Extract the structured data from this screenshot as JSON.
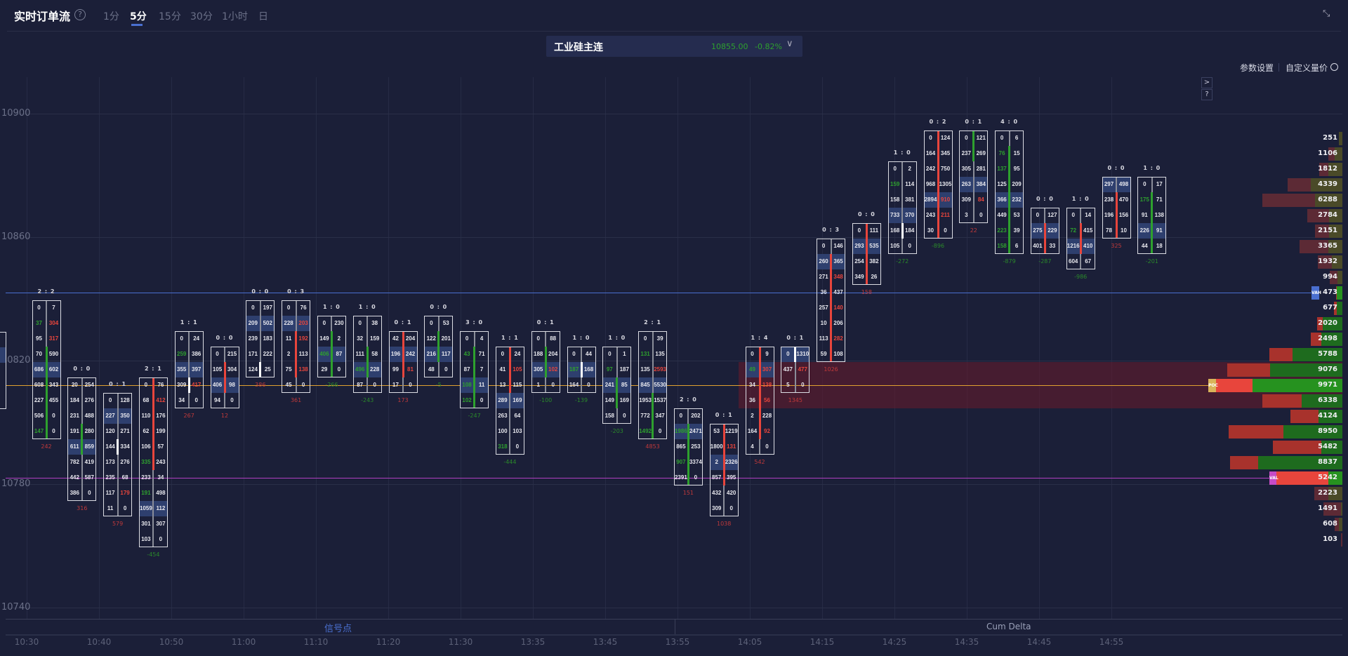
{
  "header": {
    "title": "实时订单流",
    "help_icon": "?",
    "tabs": [
      "1分",
      "5分",
      "15分",
      "30分",
      "1小时",
      "日"
    ],
    "active_tab": 1
  },
  "instrument": {
    "name": "工业硅主连",
    "price": "10855.00",
    "change": "-0.82%",
    "color": "#2ea02e"
  },
  "toolbar": {
    "params": "参数设置",
    "custom": "自定义量价",
    "side_buttons": [
      ">",
      "?"
    ]
  },
  "price_axis": [
    10900,
    10860,
    10820,
    10780,
    10740
  ],
  "time_axis": [
    "10:30",
    "10:40",
    "10:50",
    "11:00",
    "11:10",
    "11:20",
    "11:30",
    "13:35",
    "13:45",
    "13:55",
    "14:05",
    "14:15",
    "14:25",
    "14:35",
    "14:45",
    "14:55"
  ],
  "bottom_panels": {
    "signal": "信号点",
    "cum_delta": "Cum Delta"
  },
  "colors": {
    "green": "#2ea02e",
    "red": "#e8453c",
    "highlight": "#2e3f6e",
    "vah": "#4a6fd0",
    "poc": "#e0a030",
    "val": "#b040c0"
  },
  "levels": {
    "vah": 10840,
    "poc": 10810,
    "val": 10780,
    "vah_label": "VAH",
    "poc_label": "POC",
    "val_label": "VAL"
  },
  "profile": {
    "top_price": 10890,
    "tick": 5,
    "rows": [
      {
        "vol": 251,
        "sell_ratio": 0.0
      },
      {
        "vol": 1106,
        "sell_ratio": 0.43
      },
      {
        "vol": 1812,
        "sell_ratio": 0.38
      },
      {
        "vol": 4339,
        "sell_ratio": 0.42
      },
      {
        "vol": 6288,
        "sell_ratio": 0.66
      },
      {
        "vol": 2784,
        "sell_ratio": 0.62
      },
      {
        "vol": 2151,
        "sell_ratio": 0.5
      },
      {
        "vol": 3365,
        "sell_ratio": 0.67
      },
      {
        "vol": 1932,
        "sell_ratio": 0.58
      },
      {
        "vol": 994,
        "sell_ratio": 0.63
      },
      {
        "vol": 473,
        "sell_ratio": 0.1
      },
      {
        "vol": 677,
        "sell_ratio": 0.37
      },
      {
        "vol": 2020,
        "sell_ratio": 0.24
      },
      {
        "vol": 2498,
        "sell_ratio": 0.33
      },
      {
        "vol": 5788,
        "sell_ratio": 0.32
      },
      {
        "vol": 9076,
        "sell_ratio": 0.37
      },
      {
        "vol": 9971,
        "sell_ratio": 0.29
      },
      {
        "vol": 6338,
        "sell_ratio": 0.49
      },
      {
        "vol": 4124,
        "sell_ratio": 0.55
      },
      {
        "vol": 8950,
        "sell_ratio": 0.48
      },
      {
        "vol": 5482,
        "sell_ratio": 0.7
      },
      {
        "vol": 8837,
        "sell_ratio": 0.25
      },
      {
        "vol": 5242,
        "sell_ratio": 0.79
      },
      {
        "vol": 2223,
        "sell_ratio": 0.5
      },
      {
        "vol": 1491,
        "sell_ratio": 0.93
      },
      {
        "vol": 608,
        "sell_ratio": 0.5
      },
      {
        "vol": 103,
        "sell_ratio": 1.0
      }
    ]
  },
  "candles": [
    {
      "ratio": "2 : 2",
      "top": 10835,
      "hl": 4,
      "body": [
        10822.5,
        10792.5
      ],
      "body_color": "green",
      "delta": "242",
      "rows": [
        [
          0,
          7
        ],
        [
          37,
          304,
          "gr"
        ],
        [
          95,
          317,
          "-r"
        ],
        [
          70,
          590
        ],
        [
          686,
          602
        ],
        [
          608,
          343
        ],
        [
          227,
          455
        ],
        [
          506,
          0
        ],
        [
          147,
          0,
          "g-"
        ]
      ]
    },
    {
      "ratio": "0 : 0",
      "top": 10810,
      "hl": 4,
      "body": [
        10797.5,
        10787.5
      ],
      "body_color": "green",
      "delta": "316",
      "rows": [
        [
          20,
          254
        ],
        [
          184,
          276
        ],
        [
          231,
          488
        ],
        [
          191,
          280
        ],
        [
          611,
          859
        ],
        [
          782,
          419
        ],
        [
          442,
          587
        ],
        [
          386,
          0
        ]
      ]
    },
    {
      "ratio": "0 : 1",
      "top": 10805,
      "hl": 1,
      "body": [
        10792.5,
        10787.5
      ],
      "body_color": "white",
      "delta": "579",
      "rows": [
        [
          0,
          128
        ],
        [
          227,
          350
        ],
        [
          120,
          271
        ],
        [
          144,
          334
        ],
        [
          173,
          276
        ],
        [
          235,
          68
        ],
        [
          117,
          179,
          "-r"
        ],
        [
          11,
          0
        ]
      ]
    },
    {
      "ratio": "2 : 1",
      "top": 10810,
      "hl": 8,
      "body": [
        10812.5,
        10782.5
      ],
      "body_color": "red",
      "delta": "-454",
      "rows": [
        [
          0,
          76
        ],
        [
          68,
          412,
          "-r"
        ],
        [
          110,
          176
        ],
        [
          62,
          199
        ],
        [
          106,
          57
        ],
        [
          335,
          243,
          "g-"
        ],
        [
          233,
          34
        ],
        [
          191,
          498,
          "g-"
        ],
        [
          1059,
          112
        ],
        [
          301,
          307
        ],
        [
          103,
          0
        ]
      ]
    },
    {
      "ratio": "1 : 1",
      "top": 10825,
      "hl": 2,
      "body": [
        10812.5,
        10807.5
      ],
      "body_color": "white",
      "delta": "267",
      "rows": [
        [
          0,
          24
        ],
        [
          259,
          386,
          "g-"
        ],
        [
          355,
          397
        ],
        [
          309,
          417,
          "-r"
        ],
        [
          34,
          0
        ]
      ]
    },
    {
      "ratio": "0 : 0",
      "top": 10820,
      "hl": 2,
      "body": [
        10817.5,
        10807.5
      ],
      "body_color": "red",
      "delta": "12",
      "rows": [
        [
          0,
          215
        ],
        [
          105,
          304
        ],
        [
          406,
          98
        ],
        [
          94,
          0
        ]
      ]
    },
    {
      "ratio": "0 : 0",
      "top": 10835,
      "hl": 1,
      "body": [
        10817.5,
        10812.5
      ],
      "body_color": "white",
      "delta": "386",
      "rows": [
        [
          0,
          197
        ],
        [
          209,
          502
        ],
        [
          239,
          183
        ],
        [
          171,
          222
        ],
        [
          124,
          25
        ]
      ]
    },
    {
      "ratio": "0 : 3",
      "top": 10835,
      "hl": 1,
      "body": [
        10827.5,
        10812.5
      ],
      "body_color": "red",
      "delta": "361",
      "rows": [
        [
          0,
          76
        ],
        [
          228,
          203,
          "-r"
        ],
        [
          11,
          192,
          "-r"
        ],
        [
          2,
          113
        ],
        [
          75,
          138,
          "-r"
        ],
        [
          45,
          0
        ]
      ]
    },
    {
      "ratio": "1 : 0",
      "top": 10830,
      "hl": 2,
      "body": [
        10827.5,
        10812.5
      ],
      "body_color": "green",
      "delta": "-266",
      "rows": [
        [
          0,
          230
        ],
        [
          149,
          2
        ],
        [
          406,
          87,
          "g-"
        ],
        [
          29,
          0
        ]
      ]
    },
    {
      "ratio": "1 : 0",
      "top": 10830,
      "hl": 3,
      "body": [
        10822.5,
        10812.5
      ],
      "body_color": "green",
      "delta": "-243",
      "rows": [
        [
          0,
          38
        ],
        [
          32,
          159
        ],
        [
          111,
          58
        ],
        [
          496,
          228,
          "g-"
        ],
        [
          87,
          0
        ]
      ]
    },
    {
      "ratio": "0 : 1",
      "top": 10825,
      "hl": 1,
      "body": [
        10827.5,
        10812.5
      ],
      "body_color": "red",
      "delta": "173",
      "rows": [
        [
          42,
          204
        ],
        [
          196,
          242
        ],
        [
          99,
          81,
          "-r"
        ],
        [
          17,
          0
        ]
      ]
    },
    {
      "ratio": "0 : 0",
      "top": 10830,
      "hl": 2,
      "body": [
        10827.5,
        10817.5
      ],
      "body_color": "green",
      "delta": "-5",
      "rows": [
        [
          0,
          53
        ],
        [
          122,
          201
        ],
        [
          216,
          117
        ],
        [
          48,
          0
        ]
      ]
    },
    {
      "ratio": "3 : 0",
      "top": 10825,
      "hl": 3,
      "body": [
        10822.5,
        10802.5
      ],
      "body_color": "green",
      "delta": "-247",
      "rows": [
        [
          0,
          4
        ],
        [
          43,
          71,
          "g-"
        ],
        [
          87,
          7
        ],
        [
          108,
          11,
          "g-"
        ],
        [
          102,
          0,
          "g-"
        ]
      ]
    },
    {
      "ratio": "1 : 1",
      "top": 10820,
      "hl": 3,
      "body": [
        10822.5,
        10807.5
      ],
      "body_color": "red",
      "delta": "-444",
      "rows": [
        [
          0,
          24
        ],
        [
          41,
          105,
          "-r"
        ],
        [
          13,
          115
        ],
        [
          289,
          169
        ],
        [
          263,
          64
        ],
        [
          100,
          103
        ],
        [
          318,
          0,
          "g-"
        ]
      ]
    },
    {
      "ratio": "0 : 1",
      "top": 10825,
      "hl": 2,
      "body": [
        10822.5,
        10812.5
      ],
      "body_color": "green",
      "delta": "-100",
      "rows": [
        [
          0,
          88
        ],
        [
          188,
          204
        ],
        [
          305,
          102,
          "-r"
        ],
        [
          1,
          0
        ]
      ]
    },
    {
      "ratio": "1 : 0",
      "top": 10820,
      "hl": 1,
      "body": [
        10817.5,
        10812.5
      ],
      "body_color": "white",
      "delta": "-139",
      "rows": [
        [
          0,
          44
        ],
        [
          187,
          168,
          "g-"
        ],
        [
          164,
          0
        ]
      ]
    },
    {
      "ratio": "1 : 0",
      "top": 10820,
      "hl": 2,
      "body": [
        10812.5,
        10802.5
      ],
      "body_color": "green",
      "delta": "-203",
      "rows": [
        [
          0,
          1
        ],
        [
          97,
          187,
          "g-"
        ],
        [
          241,
          85
        ],
        [
          149,
          169
        ],
        [
          158,
          0
        ]
      ]
    },
    {
      "ratio": "2 : 1",
      "top": 10825,
      "hl": 3,
      "body": [
        10807.5,
        10792.5
      ],
      "body_color": "green",
      "delta": "4853",
      "rows": [
        [
          0,
          39
        ],
        [
          131,
          135,
          "g-"
        ],
        [
          135,
          2593,
          "-r"
        ],
        [
          845,
          5530
        ],
        [
          1953,
          1537
        ],
        [
          772,
          347
        ],
        [
          1492,
          0,
          "g-"
        ]
      ]
    },
    {
      "ratio": "2 : 0",
      "top": 10800,
      "hl": 1,
      "body": [
        10797.5,
        10777.5
      ],
      "body_color": "green",
      "delta": "151",
      "rows": [
        [
          0,
          202
        ],
        [
          1986,
          2471,
          "g-"
        ],
        [
          865,
          253
        ],
        [
          907,
          3374,
          "g-"
        ],
        [
          2391,
          0
        ]
      ]
    },
    {
      "ratio": "0 : 1",
      "top": 10795,
      "hl": 2,
      "body": [
        10797.5,
        10777.5
      ],
      "body_color": "red",
      "delta": "1038",
      "rows": [
        [
          53,
          1219
        ],
        [
          1800,
          131,
          "-r"
        ],
        [
          2,
          2326
        ],
        [
          857,
          395
        ],
        [
          432,
          420
        ],
        [
          309,
          0
        ]
      ]
    },
    {
      "ratio": "1 : 4",
      "top": 10820,
      "hl": 1,
      "body": [
        10822.5,
        10792.5
      ],
      "body_color": "red",
      "delta": "542",
      "rows": [
        [
          0,
          9
        ],
        [
          49,
          307,
          "gr"
        ],
        [
          34,
          138,
          "-r"
        ],
        [
          36,
          56,
          "-r"
        ],
        [
          2,
          228
        ],
        [
          164,
          92,
          "-r"
        ],
        [
          4,
          0
        ]
      ]
    },
    {
      "ratio": "0 : 1",
      "top": 10820,
      "hl": 0,
      "body": [
        10822.5,
        10817.5
      ],
      "body_color": "white",
      "delta": "1345",
      "rows": [
        [
          0,
          1310
        ],
        [
          437,
          477,
          "-r"
        ],
        [
          5,
          0
        ]
      ]
    },
    {
      "ratio": "0 : 3",
      "top": 10855,
      "hl": 1,
      "body": [
        10852.5,
        10817.5
      ],
      "body_color": "red",
      "delta": "1026",
      "rows": [
        [
          0,
          146
        ],
        [
          260,
          365
        ],
        [
          271,
          348,
          "-r"
        ],
        [
          36,
          437
        ],
        [
          257,
          140,
          "-r"
        ],
        [
          10,
          206
        ],
        [
          113,
          282,
          "-r"
        ],
        [
          59,
          108
        ]
      ]
    },
    {
      "ratio": "0 : 0",
      "top": 10860,
      "hl": 1,
      "body": [
        10862.5,
        10842.5
      ],
      "body_color": "red",
      "delta": "158",
      "rows": [
        [
          0,
          111
        ],
        [
          293,
          535
        ],
        [
          254,
          382
        ],
        [
          349,
          26
        ]
      ]
    },
    {
      "ratio": "1 : 0",
      "top": 10880,
      "hl": 3,
      "body": [
        10862.5,
        10857.5
      ],
      "body_color": "white",
      "delta": "-272",
      "rows": [
        [
          0,
          2
        ],
        [
          159,
          114,
          "g-"
        ],
        [
          158,
          381
        ],
        [
          733,
          370
        ],
        [
          168,
          184
        ],
        [
          105,
          0
        ]
      ]
    },
    {
      "ratio": "0 : 2",
      "top": 10890,
      "hl": 4,
      "body": [
        10892.5,
        10857.5
      ],
      "body_color": "red",
      "delta": "-896",
      "rows": [
        [
          0,
          124
        ],
        [
          164,
          345
        ],
        [
          242,
          750
        ],
        [
          968,
          1305
        ],
        [
          2894,
          910,
          "-r"
        ],
        [
          243,
          211,
          "-r"
        ],
        [
          30,
          0
        ]
      ]
    },
    {
      "ratio": "0 : 1",
      "top": 10890,
      "hl": 3,
      "body": [
        10892.5,
        10882.5
      ],
      "body_color": "green",
      "delta": "22",
      "rows": [
        [
          0,
          121
        ],
        [
          237,
          269
        ],
        [
          305,
          281
        ],
        [
          263,
          384
        ],
        [
          309,
          84,
          "-r"
        ],
        [
          3,
          0
        ]
      ]
    },
    {
      "ratio": "4 : 0",
      "top": 10890,
      "hl": 4,
      "body": [
        10887.5,
        10852.5
      ],
      "body_color": "green",
      "delta": "-879",
      "rows": [
        [
          0,
          6
        ],
        [
          76,
          15,
          "g-"
        ],
        [
          137,
          95,
          "g-"
        ],
        [
          125,
          209
        ],
        [
          366,
          232
        ],
        [
          449,
          53
        ],
        [
          223,
          39,
          "g-"
        ],
        [
          158,
          6,
          "g-"
        ]
      ]
    },
    {
      "ratio": "0 : 0",
      "top": 10865,
      "hl": 1,
      "body": [
        10862.5,
        10852.5
      ],
      "body_color": "red",
      "delta": "-287",
      "rows": [
        [
          0,
          127
        ],
        [
          275,
          229
        ],
        [
          401,
          33
        ]
      ]
    },
    {
      "ratio": "1 : 0",
      "top": 10865,
      "hl": 2,
      "body": [
        10862.5,
        10852.5
      ],
      "body_color": "red",
      "delta": "-986",
      "rows": [
        [
          0,
          14
        ],
        [
          72,
          415,
          "g-"
        ],
        [
          1216,
          410
        ],
        [
          604,
          67
        ]
      ]
    },
    {
      "ratio": "0 : 0",
      "top": 10875,
      "hl": 0,
      "body": [
        10872.5,
        10857.5
      ],
      "body_color": "red",
      "delta": "325",
      "rows": [
        [
          297,
          498
        ],
        [
          238,
          470
        ],
        [
          196,
          156
        ],
        [
          78,
          10
        ]
      ]
    },
    {
      "ratio": "1 : 0",
      "top": 10875,
      "hl": 3,
      "body": [
        10872.5,
        10852.5
      ],
      "body_color": "green",
      "delta": "-201",
      "rows": [
        [
          0,
          17
        ],
        [
          175,
          71,
          "g-"
        ],
        [
          91,
          138
        ],
        [
          226,
          91
        ],
        [
          44,
          18
        ]
      ]
    }
  ]
}
